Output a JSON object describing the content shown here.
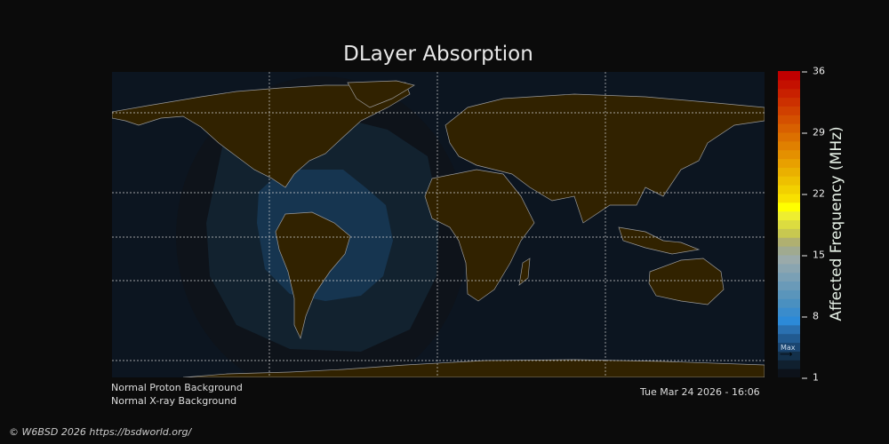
{
  "title": "DLayer Absorption",
  "colorbar": {
    "label": "Affected Frequency (MHz)",
    "ticks": [
      "36",
      "29",
      "22",
      "15",
      "8",
      "1"
    ],
    "range": [
      1,
      36
    ],
    "max_marker_label": "Max",
    "colors": [
      "#0d121a",
      "#10202f",
      "#13304a",
      "#1a4570",
      "#215a90",
      "#2a70b0",
      "#2c8ad8",
      "#3a8ccc",
      "#4a90c0",
      "#5a95bb",
      "#6a9ab8",
      "#7aa0b5",
      "#8aa5b0",
      "#9aaaaa",
      "#a0aa90",
      "#b0b070",
      "#c8c850",
      "#dcdc40",
      "#eeee30",
      "#ffff00",
      "#f8e000",
      "#f2d000",
      "#eec000",
      "#eab000",
      "#e8a000",
      "#e49000",
      "#e08000",
      "#dc7000",
      "#d86000",
      "#d45000",
      "#d04000",
      "#cc3000",
      "#c82000",
      "#c41000",
      "#c00000"
    ]
  },
  "map_colors": {
    "ocean": "#0c1520",
    "land": "#312200",
    "coast": "#9a9a9a",
    "absorption_outer": "#0e131a",
    "absorption_mid": "#12222f",
    "absorption_inner": "#163550"
  },
  "status": {
    "proton": "Normal Proton Background",
    "xray": "Normal X-ray Background",
    "timestamp": "Tue Mar 24 2026 - 16:06"
  },
  "footer": "© W6BSD 2026 https://bsdworld.org/"
}
